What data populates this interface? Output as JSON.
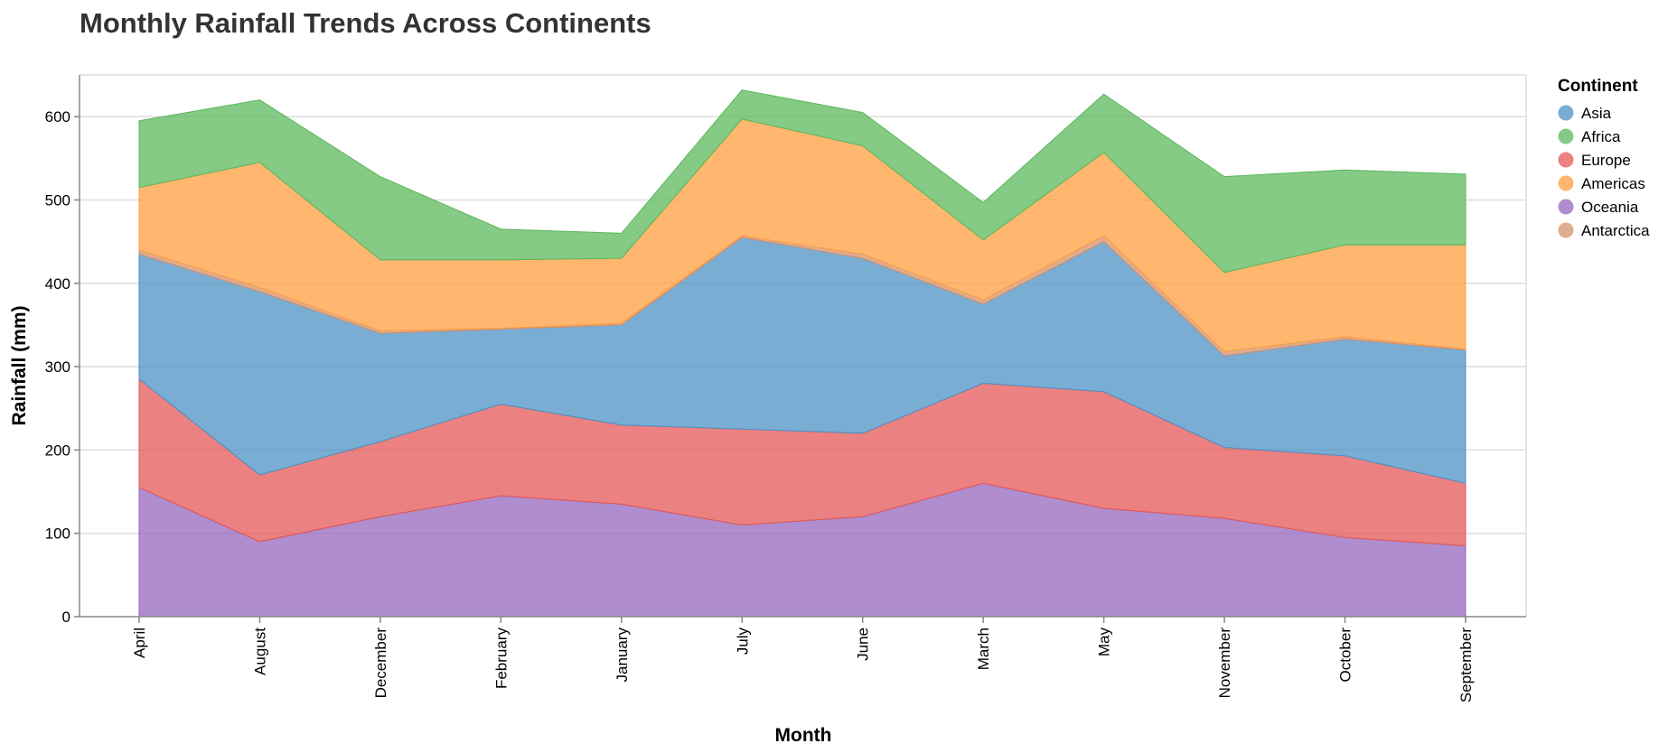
{
  "chart_data": {
    "type": "area",
    "stacked": true,
    "title": "Monthly Rainfall Trends Across Continents",
    "xlabel": "Month",
    "ylabel": "Rainfall (mm)",
    "ylim": [
      0,
      650
    ],
    "y_ticks": [
      0,
      100,
      200,
      300,
      400,
      500,
      600
    ],
    "grid": true,
    "legend": {
      "title": "Continent",
      "placement": "right"
    },
    "categories": [
      "April",
      "August",
      "December",
      "February",
      "January",
      "July",
      "June",
      "March",
      "May",
      "November",
      "October",
      "September"
    ],
    "series": [
      {
        "name": "Oceania",
        "color": "#9467bd",
        "values": [
          155,
          90,
          120,
          145,
          135,
          110,
          120,
          160,
          130,
          118,
          95,
          85
        ]
      },
      {
        "name": "Europe",
        "color": "#e45756",
        "values": [
          130,
          80,
          90,
          110,
          95,
          115,
          100,
          120,
          140,
          85,
          98,
          75
        ]
      },
      {
        "name": "Asia",
        "color": "#4c91c5",
        "values": [
          150,
          220,
          130,
          90,
          120,
          230,
          210,
          95,
          180,
          110,
          140,
          160
        ]
      },
      {
        "name": "Antarctica",
        "color": "#d4906a",
        "values": [
          5,
          5,
          3,
          1,
          2,
          2,
          5,
          5,
          7,
          5,
          3,
          1
        ]
      },
      {
        "name": "Americas",
        "color": "#ff9f40",
        "values": [
          75,
          150,
          85,
          82,
          78,
          140,
          130,
          72,
          100,
          95,
          110,
          125
        ]
      },
      {
        "name": "Africa",
        "color": "#5cb85c",
        "values": [
          80,
          75,
          100,
          37,
          30,
          35,
          40,
          45,
          70,
          115,
          90,
          85
        ]
      }
    ],
    "legend_order": [
      "Asia",
      "Africa",
      "Europe",
      "Americas",
      "Oceania",
      "Antarctica"
    ]
  }
}
